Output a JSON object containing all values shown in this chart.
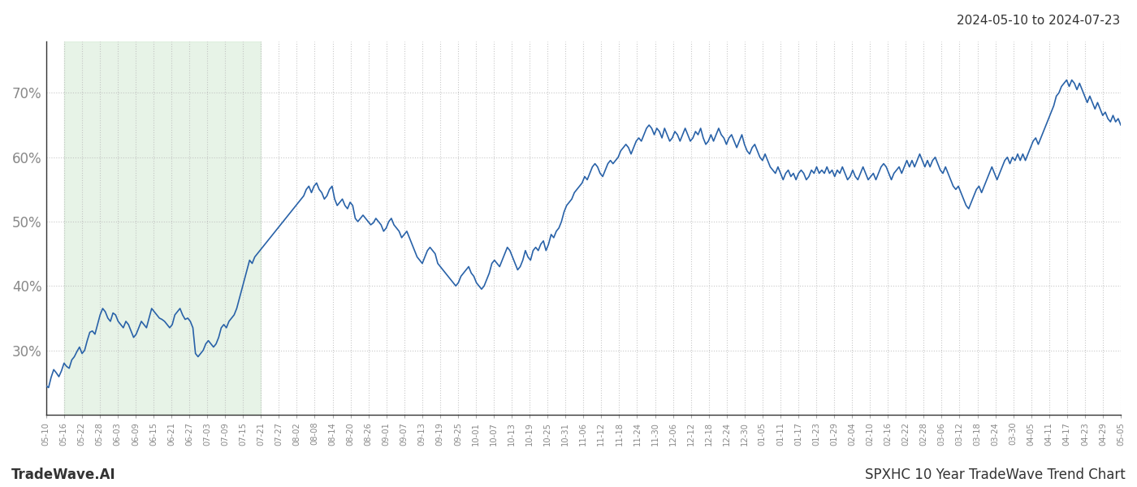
{
  "title_top_right": "2024-05-10 to 2024-07-23",
  "title_bottom_left": "TradeWave.AI",
  "title_bottom_right": "SPXHC 10 Year TradeWave Trend Chart",
  "line_color": "#2962a8",
  "line_width": 1.2,
  "shade_color": "#d4ead4",
  "shade_alpha": 0.55,
  "background_color": "#ffffff",
  "grid_color": "#bbbbbb",
  "grid_style": ":",
  "grid_alpha": 0.8,
  "ylim": [
    20,
    78
  ],
  "yticks": [
    30,
    40,
    50,
    60,
    70
  ],
  "xlabel_fontsize": 7.2,
  "ylabel_fontsize": 12,
  "tick_color": "#888888",
  "shade_x_start_label": "05-16",
  "shade_x_end_label": "07-21",
  "x_labels": [
    "05-10",
    "05-16",
    "05-22",
    "05-28",
    "06-03",
    "06-09",
    "06-15",
    "06-21",
    "06-27",
    "07-03",
    "07-09",
    "07-15",
    "07-21",
    "07-27",
    "08-02",
    "08-08",
    "08-14",
    "08-20",
    "08-26",
    "09-01",
    "09-07",
    "09-13",
    "09-19",
    "09-25",
    "10-01",
    "10-07",
    "10-13",
    "10-19",
    "10-25",
    "10-31",
    "11-06",
    "11-12",
    "11-18",
    "11-24",
    "11-30",
    "12-06",
    "12-12",
    "12-18",
    "12-24",
    "12-30",
    "01-05",
    "01-11",
    "01-17",
    "01-23",
    "01-29",
    "02-04",
    "02-10",
    "02-16",
    "02-22",
    "02-28",
    "03-06",
    "03-12",
    "03-18",
    "03-24",
    "03-30",
    "04-05",
    "04-11",
    "04-17",
    "04-23",
    "04-29",
    "05-05"
  ],
  "y_data": [
    24.5,
    24.2,
    25.8,
    27.0,
    26.5,
    25.9,
    26.8,
    28.0,
    27.5,
    27.2,
    28.5,
    29.0,
    29.8,
    30.5,
    29.5,
    30.0,
    31.5,
    32.8,
    33.0,
    32.5,
    34.0,
    35.5,
    36.5,
    36.0,
    35.0,
    34.5,
    35.8,
    35.5,
    34.5,
    34.0,
    33.5,
    34.5,
    34.0,
    33.0,
    32.0,
    32.5,
    33.5,
    34.5,
    34.0,
    33.5,
    35.0,
    36.5,
    36.0,
    35.5,
    35.0,
    34.8,
    34.5,
    34.0,
    33.5,
    34.0,
    35.5,
    36.0,
    36.5,
    35.5,
    34.8,
    35.0,
    34.5,
    33.5,
    29.5,
    29.0,
    29.5,
    30.0,
    31.0,
    31.5,
    31.0,
    30.5,
    31.0,
    32.0,
    33.5,
    34.0,
    33.5,
    34.5,
    35.0,
    35.5,
    36.5,
    38.0,
    39.5,
    41.0,
    42.5,
    44.0,
    43.5,
    44.5,
    45.0,
    45.5,
    46.0,
    46.5,
    47.0,
    47.5,
    48.0,
    48.5,
    49.0,
    49.5,
    50.0,
    50.5,
    51.0,
    51.5,
    52.0,
    52.5,
    53.0,
    53.5,
    54.0,
    55.0,
    55.5,
    54.5,
    55.5,
    56.0,
    55.0,
    54.5,
    53.5,
    54.0,
    55.0,
    55.5,
    53.5,
    52.5,
    53.0,
    53.5,
    52.5,
    52.0,
    53.0,
    52.5,
    50.5,
    50.0,
    50.5,
    51.0,
    50.5,
    50.0,
    49.5,
    49.8,
    50.5,
    50.0,
    49.5,
    48.5,
    49.0,
    50.0,
    50.5,
    49.5,
    49.0,
    48.5,
    47.5,
    48.0,
    48.5,
    47.5,
    46.5,
    45.5,
    44.5,
    44.0,
    43.5,
    44.5,
    45.5,
    46.0,
    45.5,
    45.0,
    43.5,
    43.0,
    42.5,
    42.0,
    41.5,
    41.0,
    40.5,
    40.0,
    40.5,
    41.5,
    42.0,
    42.5,
    43.0,
    42.0,
    41.5,
    40.5,
    40.0,
    39.5,
    40.0,
    41.0,
    42.0,
    43.5,
    44.0,
    43.5,
    43.0,
    44.0,
    45.0,
    46.0,
    45.5,
    44.5,
    43.5,
    42.5,
    43.0,
    44.0,
    45.5,
    44.5,
    44.0,
    45.5,
    46.0,
    45.5,
    46.5,
    47.0,
    45.5,
    46.5,
    48.0,
    47.5,
    48.5,
    49.0,
    50.0,
    51.5,
    52.5,
    53.0,
    53.5,
    54.5,
    55.0,
    55.5,
    56.0,
    57.0,
    56.5,
    57.5,
    58.5,
    59.0,
    58.5,
    57.5,
    57.0,
    58.0,
    59.0,
    59.5,
    59.0,
    59.5,
    60.0,
    61.0,
    61.5,
    62.0,
    61.5,
    60.5,
    61.5,
    62.5,
    63.0,
    62.5,
    63.5,
    64.5,
    65.0,
    64.5,
    63.5,
    64.5,
    64.0,
    63.0,
    64.5,
    63.5,
    62.5,
    63.0,
    64.0,
    63.5,
    62.5,
    63.5,
    64.5,
    63.5,
    62.5,
    63.0,
    64.0,
    63.5,
    64.5,
    63.0,
    62.0,
    62.5,
    63.5,
    62.5,
    63.5,
    64.5,
    63.5,
    63.0,
    62.0,
    63.0,
    63.5,
    62.5,
    61.5,
    62.5,
    63.5,
    62.0,
    61.0,
    60.5,
    61.5,
    62.0,
    61.0,
    60.0,
    59.5,
    60.5,
    59.5,
    58.5,
    58.0,
    57.5,
    58.5,
    57.5,
    56.5,
    57.5,
    58.0,
    57.0,
    57.5,
    56.5,
    57.5,
    58.0,
    57.5,
    56.5,
    57.0,
    58.0,
    57.5,
    58.5,
    57.5,
    58.0,
    57.5,
    58.5,
    57.5,
    58.0,
    57.0,
    58.0,
    57.5,
    58.5,
    57.5,
    56.5,
    57.0,
    58.0,
    57.0,
    56.5,
    57.5,
    58.5,
    57.5,
    56.5,
    57.0,
    57.5,
    56.5,
    57.5,
    58.5,
    59.0,
    58.5,
    57.5,
    56.5,
    57.5,
    58.0,
    58.5,
    57.5,
    58.5,
    59.5,
    58.5,
    59.5,
    58.5,
    59.5,
    60.5,
    59.5,
    58.5,
    59.5,
    58.5,
    59.5,
    60.0,
    59.0,
    58.0,
    57.5,
    58.5,
    57.5,
    56.5,
    55.5,
    55.0,
    55.5,
    54.5,
    53.5,
    52.5,
    52.0,
    53.0,
    54.0,
    55.0,
    55.5,
    54.5,
    55.5,
    56.5,
    57.5,
    58.5,
    57.5,
    56.5,
    57.5,
    58.5,
    59.5,
    60.0,
    59.0,
    60.0,
    59.5,
    60.5,
    59.5,
    60.5,
    59.5,
    60.5,
    61.5,
    62.5,
    63.0,
    62.0,
    63.0,
    64.0,
    65.0,
    66.0,
    67.0,
    68.0,
    69.5,
    70.0,
    71.0,
    71.5,
    72.0,
    71.0,
    72.0,
    71.5,
    70.5,
    71.5,
    70.5,
    69.5,
    68.5,
    69.5,
    68.5,
    67.5,
    68.5,
    67.5,
    66.5,
    67.0,
    66.0,
    65.5,
    66.5,
    65.5,
    66.0,
    65.0
  ]
}
